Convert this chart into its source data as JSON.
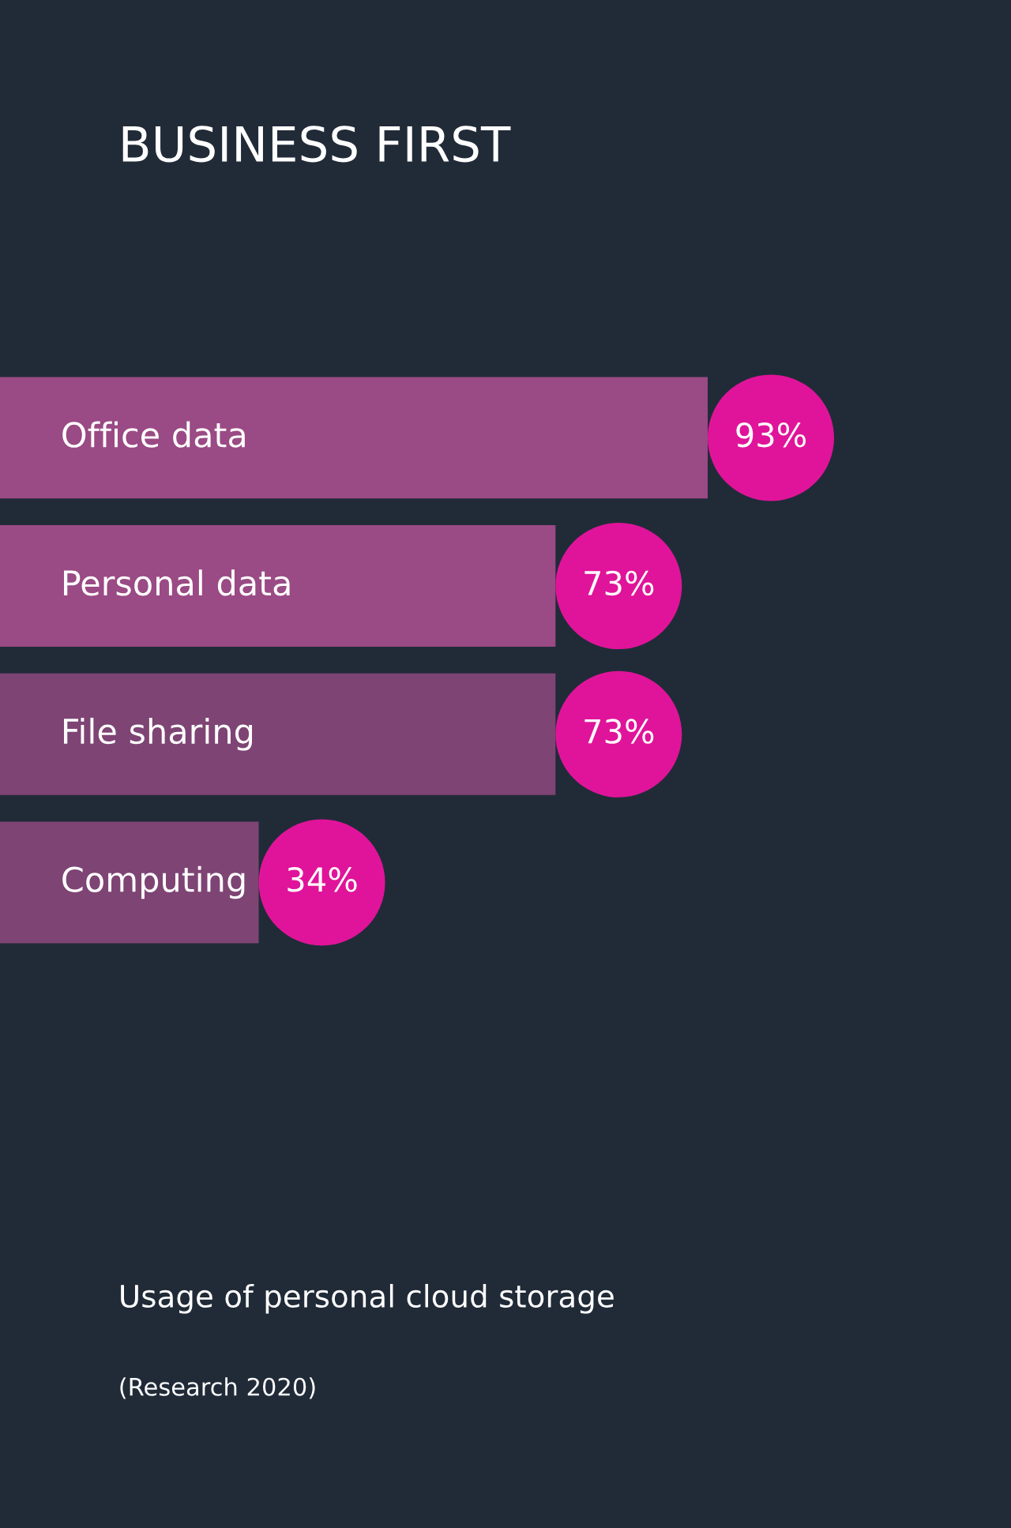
{
  "chart_data": {
    "type": "bar",
    "orientation": "horizontal",
    "title": "BUSINESS FIRST",
    "categories": [
      "Office data",
      "Personal data",
      "File sharing",
      "Computing"
    ],
    "values": [
      93,
      73,
      73,
      34
    ],
    "value_labels": [
      "93%",
      "73%",
      "73%",
      "34%"
    ],
    "colors": [
      "#9a4a84",
      "#9a4a84",
      "#7e4474",
      "#7e4474"
    ],
    "annotations": [
      "Usage of personal cloud storage",
      "(Research 2020)"
    ]
  }
}
